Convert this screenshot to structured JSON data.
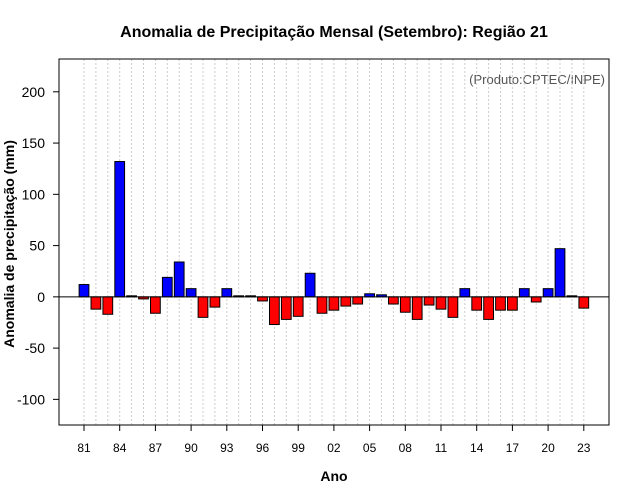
{
  "chart_data": {
    "type": "bar",
    "title": "Anomalia de Precipitação Mensal (Setembro): Região 21",
    "xlabel": "Ano",
    "ylabel": "Anomalia de precipitação (mm)",
    "credit": "(Produto:CPTEC/INPE)",
    "ylim": [
      -125,
      232
    ],
    "yticks": [
      -100,
      -50,
      0,
      50,
      100,
      150,
      200
    ],
    "ytick_labels": [
      "-100",
      "-50",
      "0",
      "50",
      "100",
      "150",
      "200"
    ],
    "xtick_labels": [
      "81",
      "84",
      "87",
      "90",
      "93",
      "96",
      "99",
      "02",
      "05",
      "08",
      "11",
      "14",
      "17",
      "20",
      "23"
    ],
    "xtick_every": 3,
    "grid": true,
    "positive_color": "#0000ff",
    "negative_color": "#ff0000",
    "categories": [
      "1981",
      "1982",
      "1983",
      "1984",
      "1985",
      "1986",
      "1987",
      "1988",
      "1989",
      "1990",
      "1991",
      "1992",
      "1993",
      "1994",
      "1995",
      "1996",
      "1997",
      "1998",
      "1999",
      "2000",
      "2001",
      "2002",
      "2003",
      "2004",
      "2005",
      "2006",
      "2007",
      "2008",
      "2009",
      "2010",
      "2011",
      "2012",
      "2013",
      "2014",
      "2015",
      "2016",
      "2017",
      "2018",
      "2019",
      "2020",
      "2021",
      "2022",
      "2023"
    ],
    "values": [
      12,
      -12,
      -17,
      132,
      1,
      -2,
      -16,
      19,
      34,
      8,
      -20,
      -10,
      8,
      1,
      1,
      -4,
      -27,
      -22,
      -19,
      23,
      -16,
      -13,
      -9,
      -7,
      3,
      2,
      -7,
      -15,
      -22,
      -8,
      -12,
      -20,
      8,
      -13,
      -22,
      -13,
      -13,
      8,
      -5,
      8,
      47,
      1,
      -11
    ]
  }
}
